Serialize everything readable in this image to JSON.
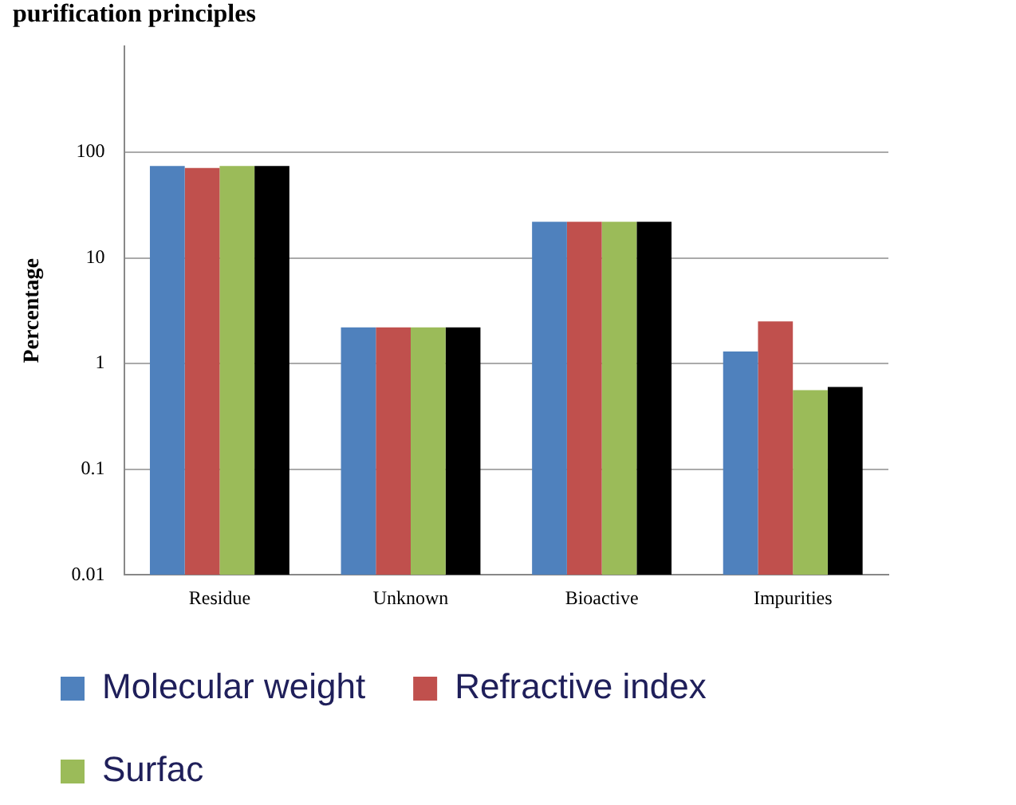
{
  "chart_data": {
    "type": "bar",
    "title": "purification principles",
    "ylabel": "Percentage",
    "categories": [
      "Residue",
      "Unknown",
      "Bioactive",
      "Impurities"
    ],
    "series": [
      {
        "name": "Molecular weight",
        "color": "#4f81bd",
        "values": [
          74,
          2.2,
          22,
          1.3
        ]
      },
      {
        "name": "Refractive index",
        "color": "#c0504d",
        "values": [
          71,
          2.2,
          22,
          2.5
        ]
      },
      {
        "name": "Surfac",
        "color": "#9bbb59",
        "values": [
          74,
          2.2,
          22,
          0.56
        ]
      },
      {
        "color": "#000000",
        "values": [
          74,
          2.2,
          22,
          0.6
        ]
      }
    ],
    "log": "y",
    "ylim": [
      0.01,
      1000
    ],
    "yticks": [
      0.01,
      0.1,
      1,
      10,
      100
    ],
    "grid": "y",
    "legend": "bottom"
  }
}
